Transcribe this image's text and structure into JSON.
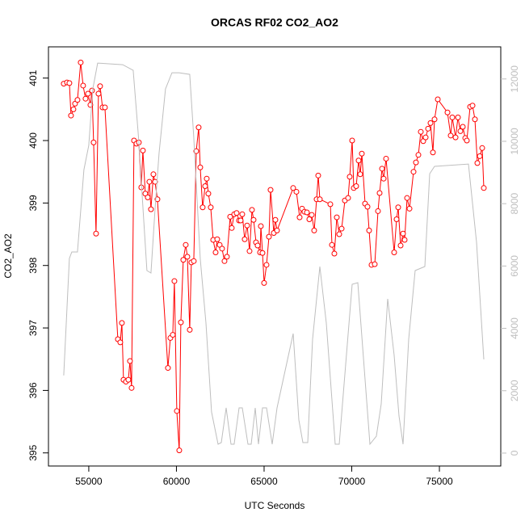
{
  "chart_data": {
    "type": "line",
    "title": "ORCAS RF02 CO2_AO2",
    "x_label": "UTC Seconds",
    "y_label": "CO2_AO2",
    "xlim": [
      52700,
      78500
    ],
    "ylim": [
      394.79,
      401.5
    ],
    "y2lim": [
      -415,
      13030
    ],
    "xticks": [
      55000,
      60000,
      65000,
      70000,
      75000
    ],
    "yticks": [
      395,
      396,
      397,
      398,
      399,
      400,
      401
    ],
    "y2ticks": [
      0,
      2000,
      4000,
      6000,
      8000,
      10000,
      12000
    ],
    "y2_color": "#bebebe",
    "series": [
      {
        "color": "#ff0000",
        "marker": "circle",
        "x": [
          53572,
          53756,
          53894,
          53986,
          54124,
          54217,
          54355,
          54539,
          54677,
          54816,
          54954,
          55092,
          55184,
          55276,
          55415,
          55553,
          55645,
          55783,
          55922,
          56659,
          56797,
          56889,
          56981,
          57120,
          57258,
          57350,
          57442,
          57580,
          57719,
          57857,
          57995,
          58087,
          58226,
          58364,
          58456,
          58548,
          58686,
          58779,
          58917,
          59516,
          59654,
          59792,
          59884,
          60023,
          60161,
          60253,
          60391,
          60530,
          60622,
          60760,
          60852,
          60990,
          61129,
          61267,
          61359,
          61497,
          61636,
          61728,
          61820,
          61958,
          62096,
          62235,
          62327,
          62465,
          62603,
          62741,
          62880,
          63064,
          63156,
          63294,
          63433,
          63571,
          63663,
          63755,
          63893,
          64032,
          64170,
          64308,
          64400,
          64539,
          64631,
          64769,
          64815,
          64907,
          64999,
          65138,
          65276,
          65368,
          65552,
          65644,
          65737,
          66658,
          66843,
          67027,
          67165,
          67303,
          67442,
          67580,
          67718,
          67856,
          67995,
          68087,
          68179,
          68778,
          68870,
          69008,
          69147,
          69285,
          69423,
          69607,
          69792,
          69884,
          70022,
          70114,
          70252,
          70391,
          70483,
          70575,
          70759,
          70898,
          70990,
          71128,
          71312,
          71497,
          71589,
          71727,
          71819,
          71957,
          72418,
          72556,
          72649,
          72787,
          72925,
          73017,
          73156,
          73294,
          73524,
          73662,
          73801,
          73939,
          74077,
          74215,
          74354,
          74492,
          74630,
          74722,
          74907,
          75460,
          75644,
          75736,
          75920,
          76059,
          76197,
          76335,
          76473,
          76565,
          76750,
          76888,
          77026,
          77164,
          77303,
          77441,
          77533
        ],
        "values": [
          400.91,
          400.93,
          400.92,
          400.4,
          400.5,
          400.59,
          400.65,
          401.25,
          400.88,
          400.67,
          400.75,
          400.57,
          400.8,
          399.97,
          398.51,
          400.75,
          400.87,
          400.53,
          400.53,
          396.82,
          396.77,
          397.08,
          396.17,
          396.14,
          396.17,
          396.47,
          396.04,
          400.0,
          399.95,
          399.97,
          399.25,
          399.84,
          399.15,
          399.09,
          399.34,
          398.9,
          399.46,
          399.34,
          399.06,
          396.36,
          396.84,
          396.89,
          397.75,
          395.67,
          395.04,
          397.09,
          398.09,
          398.33,
          398.14,
          396.97,
          398.05,
          398.07,
          399.83,
          400.21,
          399.57,
          398.93,
          399.27,
          399.39,
          399.15,
          398.93,
          398.41,
          398.21,
          398.42,
          398.33,
          398.27,
          398.07,
          398.14,
          398.78,
          398.6,
          398.82,
          398.84,
          398.72,
          398.72,
          398.82,
          398.42,
          398.64,
          398.23,
          398.89,
          398.73,
          398.37,
          398.32,
          398.21,
          398.63,
          398.2,
          397.72,
          398.01,
          398.46,
          399.21,
          398.52,
          398.73,
          398.56,
          399.24,
          399.18,
          398.77,
          398.91,
          398.86,
          398.85,
          398.74,
          398.81,
          398.56,
          399.06,
          399.44,
          399.06,
          398.98,
          398.33,
          398.19,
          398.77,
          398.5,
          398.59,
          399.04,
          399.08,
          399.42,
          400.0,
          399.24,
          399.27,
          399.68,
          399.46,
          399.79,
          398.99,
          398.94,
          398.56,
          398.01,
          398.02,
          398.87,
          399.16,
          399.55,
          399.39,
          399.71,
          398.21,
          398.74,
          398.93,
          398.32,
          398.51,
          398.41,
          399.08,
          398.91,
          399.5,
          399.65,
          399.77,
          400.14,
          399.99,
          400.05,
          400.19,
          400.28,
          399.81,
          400.34,
          400.66,
          400.45,
          400.08,
          400.37,
          400.05,
          400.37,
          400.15,
          400.22,
          400.04,
          400.0,
          400.54,
          400.56,
          400.34,
          399.64,
          399.75,
          399.88,
          399.24
        ]
      },
      {
        "color": "#bebebe",
        "axis": "y2",
        "x": [
          53572,
          53894,
          54032,
          54355,
          54724,
          55000,
          55230,
          55507,
          56935,
          57534,
          57857,
          58041,
          58318,
          58548,
          58779,
          59009,
          59378,
          59746,
          60161,
          60760,
          60990,
          61359,
          61682,
          62004,
          62373,
          62557,
          62834,
          63110,
          63294,
          63571,
          63755,
          64078,
          64262,
          64492,
          64677,
          64907,
          65138,
          65460,
          65737,
          66658,
          66981,
          67211,
          67488,
          67764,
          68179,
          68548,
          69054,
          69285,
          70022,
          70345,
          71036,
          71404,
          71681,
          72050,
          72418,
          72695,
          72925,
          73248,
          73616,
          74169,
          74446,
          74722,
          76658,
          77118,
          77533
        ],
        "values": [
          2490,
          6242,
          6449,
          6449,
          9091,
          9868,
          11681,
          12510,
          12458,
          12277,
          9997,
          8314,
          5853,
          5776,
          7796,
          9609,
          11681,
          12199,
          12199,
          12147,
          10127,
          6242,
          4170,
          1321,
          285,
          337,
          1450,
          285,
          285,
          1450,
          1450,
          285,
          285,
          1450,
          285,
          1450,
          1450,
          285,
          1450,
          3833,
          1062,
          337,
          337,
          3652,
          5983,
          4170,
          285,
          285,
          5413,
          5465,
          285,
          544,
          1580,
          4947,
          3134,
          1191,
          285,
          3652,
          5853,
          5983,
          8961,
          9195,
          9272,
          6760,
          3004
        ]
      }
    ]
  }
}
